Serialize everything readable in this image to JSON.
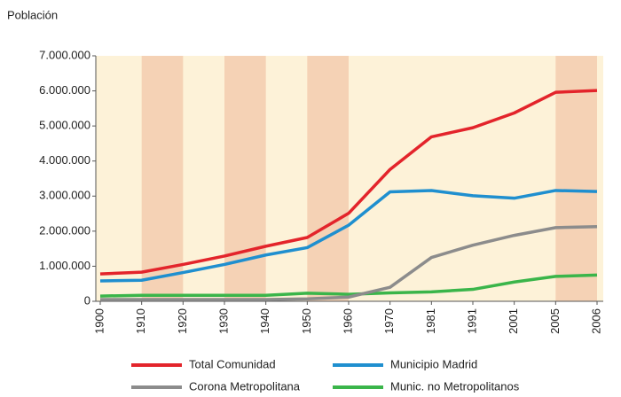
{
  "chart_data": {
    "type": "line",
    "y_label": "Población",
    "categories": [
      "1900",
      "1910",
      "1920",
      "1930",
      "1940",
      "1950",
      "1960",
      "1970",
      "1981",
      "1991",
      "2001",
      "2005",
      "2006"
    ],
    "series": [
      {
        "name": "Total Comunidad",
        "color": "#e3242b",
        "values": [
          780000,
          830000,
          1050000,
          1290000,
          1570000,
          1820000,
          2510000,
          3760000,
          4690000,
          4950000,
          5370000,
          5960000,
          6010000
        ]
      },
      {
        "name": "Municipio Madrid",
        "color": "#1f8fcf",
        "values": [
          580000,
          600000,
          820000,
          1050000,
          1320000,
          1530000,
          2170000,
          3120000,
          3160000,
          3010000,
          2940000,
          3160000,
          3130000
        ]
      },
      {
        "name": "Corona Metropolitana",
        "color": "#8c8c8c",
        "values": [
          50000,
          50000,
          50000,
          50000,
          50000,
          70000,
          120000,
          400000,
          1250000,
          1600000,
          1880000,
          2100000,
          2130000
        ]
      },
      {
        "name": "Munic.  no Metropolitanos",
        "color": "#3ab54a",
        "values": [
          150000,
          170000,
          170000,
          170000,
          170000,
          230000,
          200000,
          240000,
          270000,
          340000,
          550000,
          710000,
          750000
        ]
      }
    ],
    "ylim": [
      0,
      7000000
    ],
    "yticks": [
      0,
      {
        "value": 1000000,
        "label": "1.000.000"
      },
      {
        "value": 2000000,
        "label": "2.000.000"
      },
      {
        "value": 3000000,
        "label": "3.000.000"
      },
      {
        "value": 4000000,
        "label": "4.000.000"
      },
      {
        "value": 5000000,
        "label": "5.000.000"
      },
      {
        "value": 6000000,
        "label": "6.000.000"
      },
      {
        "value": 7000000,
        "label": "7.000.000"
      }
    ],
    "grid": false
  }
}
